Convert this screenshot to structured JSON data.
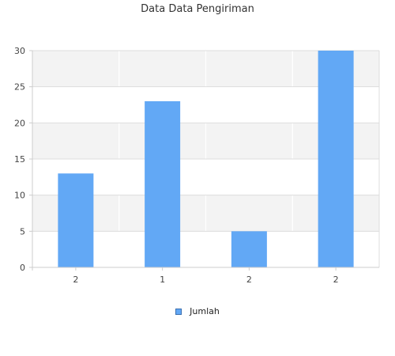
{
  "chart_data": {
    "type": "bar",
    "title": "Data Data Pengiriman",
    "categories": [
      "2",
      "1",
      "2",
      "2"
    ],
    "series": [
      {
        "name": "Jumlah",
        "values": [
          13,
          23,
          5,
          30
        ],
        "color": "#62a8f5"
      }
    ],
    "ylim": [
      0,
      30
    ],
    "yticks": [
      0,
      5,
      10,
      15,
      20,
      25,
      30
    ],
    "xlabel": "",
    "ylabel": "",
    "grid": true,
    "band_colors": [
      "#f3f3f3",
      "#ffffff"
    ],
    "legend_position": "bottom-center"
  }
}
